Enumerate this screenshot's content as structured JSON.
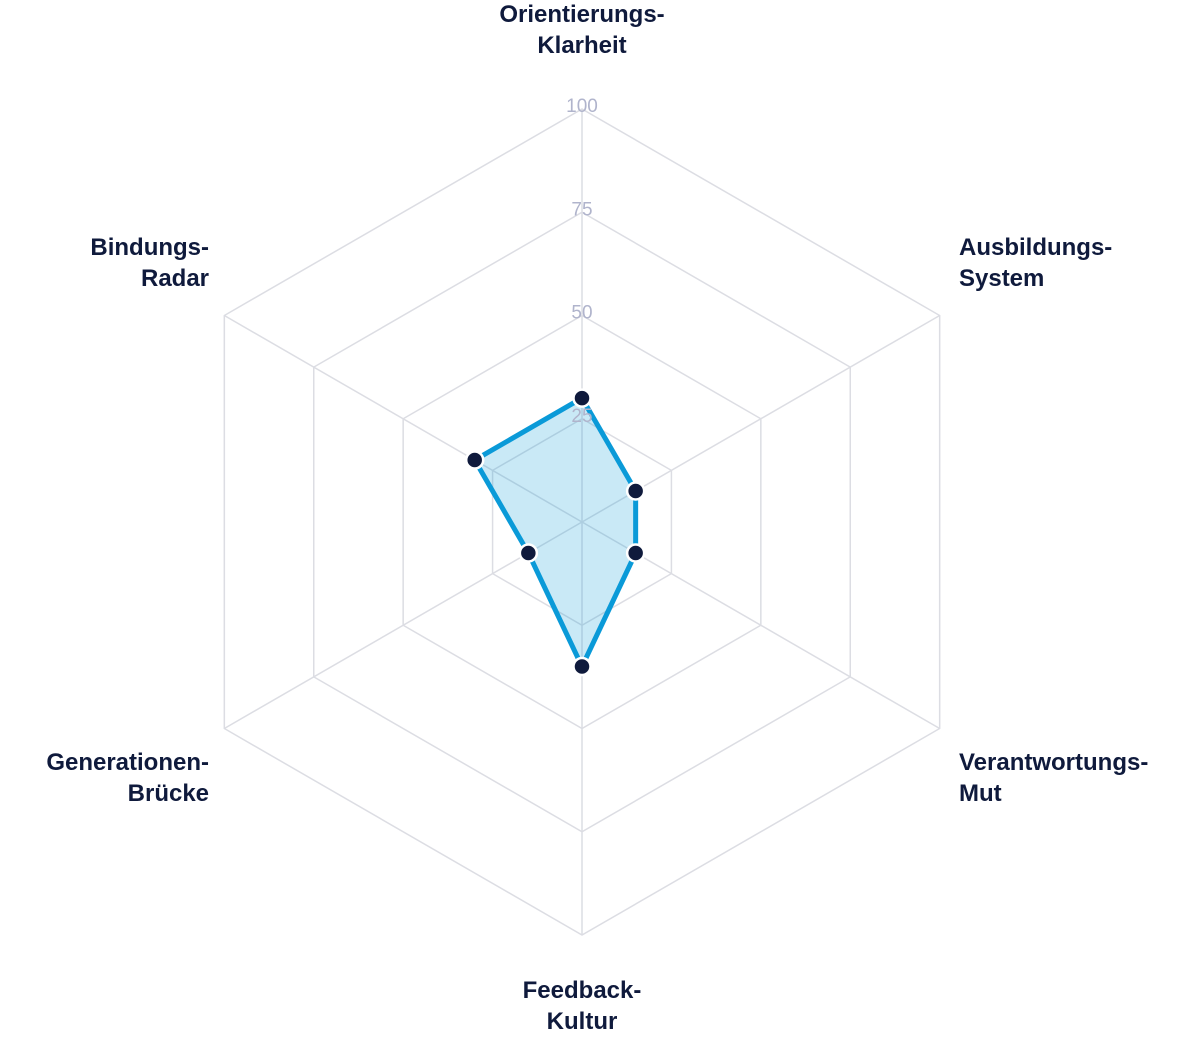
{
  "chart_data": {
    "type": "radar",
    "categories": [
      "Orientierungs-\nKlarheit",
      "Ausbildungs-\nSystem",
      "Verantwortungs-\nMut",
      "Feedback-\nKultur",
      "Generationen-\nBrücke",
      "Bindungs-\nRadar"
    ],
    "series": [
      {
        "color": "#0a9ad8",
        "values": [
          30,
          15,
          15,
          35,
          15,
          30
        ]
      }
    ],
    "ylim": [
      0,
      100
    ],
    "yticks": [
      25,
      50,
      75,
      100
    ],
    "grid": true
  }
}
